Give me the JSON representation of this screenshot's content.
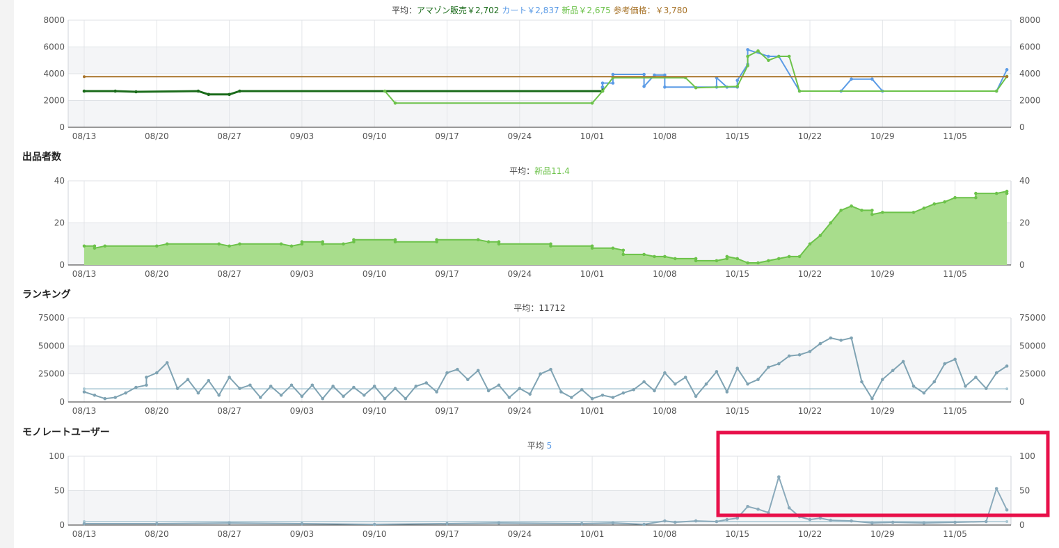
{
  "colors": {
    "amazon": "#1a6b1a",
    "cart": "#5b9be6",
    "new": "#6cc24a",
    "new_fill": "#a8dd8c",
    "reference": "#a8742a",
    "rank": "#7fa3b3",
    "monorate": "#8aaabb",
    "highlight": "#e8104a"
  },
  "date_labels": [
    "08/13",
    "08/20",
    "08/27",
    "09/03",
    "09/10",
    "09/17",
    "09/24",
    "10/01",
    "10/08",
    "10/15",
    "10/22",
    "10/29",
    "11/05"
  ],
  "charts": {
    "price": {
      "legend": {
        "avg_label": "平均：",
        "amazon": "アマゾン販売￥2,702",
        "cart": "カート￥2,837",
        "new": "新品￥2,675",
        "reference": "参考価格：￥3,780"
      },
      "yticks": [
        "8000",
        "6000",
        "4000",
        "2000",
        "0"
      ]
    },
    "sellers": {
      "title": "出品者数",
      "legend": {
        "avg_label": "平均：",
        "new": "新品11.4"
      },
      "yticks": [
        "40",
        "20",
        "0"
      ]
    },
    "ranking": {
      "title": "ランキング",
      "legend": {
        "avg_label": "平均：11712"
      },
      "yticks": [
        "75000",
        "50000",
        "25000",
        "0"
      ]
    },
    "monorate": {
      "title": "モノレートユーザー",
      "legend": {
        "avg_label": "平均",
        "avg_value": "5"
      },
      "yticks": [
        "100",
        "50",
        "0"
      ]
    }
  },
  "chart_data": [
    {
      "type": "line",
      "ylim": [
        0,
        8000
      ],
      "series": [
        {
          "name": "アマゾン販売",
          "points": [
            [
              "08/13",
              2700
            ],
            [
              "08/16",
              2700
            ],
            [
              "08/18",
              2650
            ],
            [
              "08/24",
              2700
            ],
            [
              "08/25",
              2450
            ],
            [
              "08/27",
              2450
            ],
            [
              "08/28",
              2700
            ],
            [
              "10/02",
              2700
            ],
            [
              "10/02",
              3000
            ]
          ]
        },
        {
          "name": "カート",
          "points": [
            [
              "10/02",
              3000
            ],
            [
              "10/02",
              3300
            ],
            [
              "10/03",
              3300
            ],
            [
              "10/03",
              3950
            ],
            [
              "10/06",
              3950
            ],
            [
              "10/06",
              3050
            ],
            [
              "10/07",
              3900
            ],
            [
              "10/08",
              3900
            ],
            [
              "10/08",
              3000
            ],
            [
              "10/13",
              3000
            ],
            [
              "10/13",
              3700
            ],
            [
              "10/14",
              3000
            ],
            [
              "10/15",
              3000
            ],
            [
              "10/15",
              3500
            ],
            [
              "10/16",
              4700
            ],
            [
              "10/16",
              5800
            ],
            [
              "10/18",
              5300
            ],
            [
              "10/19",
              5300
            ],
            [
              "10/21",
              2700
            ],
            [
              "10/25",
              2700
            ],
            [
              "10/26",
              3600
            ],
            [
              "10/28",
              3600
            ],
            [
              "10/29",
              2700
            ],
            [
              "11/09",
              2700
            ],
            [
              "11/10",
              4300
            ]
          ]
        },
        {
          "name": "新品",
          "points": [
            [
              "09/11",
              2700
            ],
            [
              "09/12",
              1800
            ],
            [
              "10/01",
              1800
            ],
            [
              "10/02",
              2700
            ],
            [
              "10/03",
              3700
            ],
            [
              "10/10",
              3700
            ],
            [
              "10/11",
              2950
            ],
            [
              "10/15",
              3050
            ],
            [
              "10/16",
              4600
            ],
            [
              "10/16",
              5300
            ],
            [
              "10/17",
              5700
            ],
            [
              "10/18",
              5000
            ],
            [
              "10/19",
              5300
            ],
            [
              "10/20",
              5300
            ],
            [
              "10/21",
              2700
            ],
            [
              "11/09",
              2700
            ],
            [
              "11/10",
              3800
            ]
          ]
        },
        {
          "name": "参考価格",
          "points": [
            [
              "08/13",
              3780
            ],
            [
              "11/10",
              3780
            ]
          ]
        }
      ]
    },
    {
      "type": "area",
      "ylim": [
        0,
        40
      ],
      "series": [
        {
          "name": "新品",
          "points": [
            [
              "08/13",
              9
            ],
            [
              "08/14",
              9
            ],
            [
              "08/14",
              8
            ],
            [
              "08/15",
              9
            ],
            [
              "08/20",
              9
            ],
            [
              "08/21",
              10
            ],
            [
              "08/26",
              10
            ],
            [
              "08/27",
              9
            ],
            [
              "08/28",
              10
            ],
            [
              "09/01",
              10
            ],
            [
              "09/02",
              9
            ],
            [
              "09/03",
              10
            ],
            [
              "09/03",
              11
            ],
            [
              "09/05",
              11
            ],
            [
              "09/05",
              10
            ],
            [
              "09/07",
              10
            ],
            [
              "09/08",
              11
            ],
            [
              "09/08",
              12
            ],
            [
              "09/12",
              12
            ],
            [
              "09/12",
              11
            ],
            [
              "09/16",
              11
            ],
            [
              "09/16",
              12
            ],
            [
              "09/20",
              12
            ],
            [
              "09/21",
              11
            ],
            [
              "09/22",
              11
            ],
            [
              "09/22",
              10
            ],
            [
              "09/27",
              10
            ],
            [
              "09/27",
              9
            ],
            [
              "10/01",
              9
            ],
            [
              "10/01",
              8
            ],
            [
              "10/03",
              8
            ],
            [
              "10/04",
              7
            ],
            [
              "10/04",
              5
            ],
            [
              "10/06",
              5
            ],
            [
              "10/07",
              4
            ],
            [
              "10/08",
              4
            ],
            [
              "10/09",
              3
            ],
            [
              "10/11",
              3
            ],
            [
              "10/11",
              2
            ],
            [
              "10/13",
              2
            ],
            [
              "10/14",
              3
            ],
            [
              "10/14",
              4
            ],
            [
              "10/15",
              3
            ],
            [
              "10/16",
              1
            ],
            [
              "10/17",
              1
            ],
            [
              "10/18",
              2
            ],
            [
              "10/19",
              3
            ],
            [
              "10/20",
              4
            ],
            [
              "10/21",
              4
            ],
            [
              "10/22",
              10
            ],
            [
              "10/23",
              14
            ],
            [
              "10/24",
              20
            ],
            [
              "10/25",
              26
            ],
            [
              "10/26",
              28
            ],
            [
              "10/27",
              26
            ],
            [
              "10/28",
              26
            ],
            [
              "10/28",
              24
            ],
            [
              "10/29",
              25
            ],
            [
              "11/01",
              25
            ],
            [
              "11/02",
              27
            ],
            [
              "11/03",
              29
            ],
            [
              "11/04",
              30
            ],
            [
              "11/05",
              32
            ],
            [
              "11/07",
              32
            ],
            [
              "11/07",
              34
            ],
            [
              "11/09",
              34
            ],
            [
              "11/10",
              35
            ],
            [
              "11/10",
              34
            ]
          ]
        }
      ]
    },
    {
      "type": "line",
      "ylim": [
        0,
        75000
      ],
      "series": [
        {
          "name": "ランキング",
          "average": 11712,
          "points": [
            [
              "08/13",
              9000
            ],
            [
              "08/14",
              6000
            ],
            [
              "08/15",
              3000
            ],
            [
              "08/16",
              4000
            ],
            [
              "08/17",
              8000
            ],
            [
              "08/18",
              13000
            ],
            [
              "08/19",
              15000
            ],
            [
              "08/19",
              22000
            ],
            [
              "08/20",
              26000
            ],
            [
              "08/21",
              35000
            ],
            [
              "08/22",
              12000
            ],
            [
              "08/23",
              20000
            ],
            [
              "08/24",
              8000
            ],
            [
              "08/25",
              19000
            ],
            [
              "08/26",
              6000
            ],
            [
              "08/27",
              22000
            ],
            [
              "08/28",
              12000
            ],
            [
              "08/29",
              15000
            ],
            [
              "08/30",
              4000
            ],
            [
              "08/31",
              14000
            ],
            [
              "09/01",
              6000
            ],
            [
              "09/02",
              15000
            ],
            [
              "09/03",
              5000
            ],
            [
              "09/04",
              15000
            ],
            [
              "09/05",
              3000
            ],
            [
              "09/06",
              14000
            ],
            [
              "09/07",
              5000
            ],
            [
              "09/08",
              13000
            ],
            [
              "09/09",
              6000
            ],
            [
              "09/10",
              14000
            ],
            [
              "09/11",
              3000
            ],
            [
              "09/12",
              12000
            ],
            [
              "09/13",
              3000
            ],
            [
              "09/14",
              14000
            ],
            [
              "09/15",
              17000
            ],
            [
              "09/16",
              9000
            ],
            [
              "09/17",
              26000
            ],
            [
              "09/18",
              29000
            ],
            [
              "09/19",
              20000
            ],
            [
              "09/20",
              28000
            ],
            [
              "09/21",
              10000
            ],
            [
              "09/22",
              15000
            ],
            [
              "09/23",
              4000
            ],
            [
              "09/24",
              12000
            ],
            [
              "09/25",
              7000
            ],
            [
              "09/26",
              25000
            ],
            [
              "09/27",
              29000
            ],
            [
              "09/28",
              9000
            ],
            [
              "09/29",
              4000
            ],
            [
              "09/30",
              11000
            ],
            [
              "10/01",
              3000
            ],
            [
              "10/02",
              6000
            ],
            [
              "10/03",
              4000
            ],
            [
              "10/04",
              8000
            ],
            [
              "10/05",
              11000
            ],
            [
              "10/06",
              18000
            ],
            [
              "10/07",
              10000
            ],
            [
              "10/08",
              26000
            ],
            [
              "10/09",
              16000
            ],
            [
              "10/10",
              22000
            ],
            [
              "10/11",
              5000
            ],
            [
              "10/12",
              16000
            ],
            [
              "10/13",
              27000
            ],
            [
              "10/14",
              9000
            ],
            [
              "10/15",
              30000
            ],
            [
              "10/16",
              16000
            ],
            [
              "10/17",
              20000
            ],
            [
              "10/18",
              31000
            ],
            [
              "10/19",
              34000
            ],
            [
              "10/20",
              41000
            ],
            [
              "10/21",
              42000
            ],
            [
              "10/22",
              45000
            ],
            [
              "10/23",
              52000
            ],
            [
              "10/24",
              57000
            ],
            [
              "10/25",
              55000
            ],
            [
              "10/26",
              57000
            ],
            [
              "10/27",
              18000
            ],
            [
              "10/28",
              3000
            ],
            [
              "10/29",
              20000
            ],
            [
              "10/30",
              28000
            ],
            [
              "10/31",
              36000
            ],
            [
              "11/01",
              14000
            ],
            [
              "11/02",
              8000
            ],
            [
              "11/03",
              18000
            ],
            [
              "11/04",
              34000
            ],
            [
              "11/05",
              38000
            ],
            [
              "11/06",
              14000
            ],
            [
              "11/07",
              22000
            ],
            [
              "11/08",
              12000
            ],
            [
              "11/09",
              26000
            ],
            [
              "11/10",
              32000
            ]
          ]
        }
      ]
    },
    {
      "type": "line",
      "ylim": [
        0,
        100
      ],
      "series": [
        {
          "name": "モノレートユーザー",
          "average": 5,
          "points": [
            [
              "08/13",
              2
            ],
            [
              "08/20",
              2
            ],
            [
              "08/27",
              3
            ],
            [
              "09/03",
              2
            ],
            [
              "09/10",
              1
            ],
            [
              "09/17",
              2
            ],
            [
              "09/22",
              3
            ],
            [
              "09/30",
              2
            ],
            [
              "10/03",
              3
            ],
            [
              "10/06",
              1
            ],
            [
              "10/08",
              6
            ],
            [
              "10/09",
              4
            ],
            [
              "10/11",
              6
            ],
            [
              "10/13",
              5
            ],
            [
              "10/14",
              8
            ],
            [
              "10/15",
              10
            ],
            [
              "10/16",
              27
            ],
            [
              "10/17",
              23
            ],
            [
              "10/18",
              18
            ],
            [
              "10/19",
              70
            ],
            [
              "10/20",
              25
            ],
            [
              "10/21",
              12
            ],
            [
              "10/22",
              8
            ],
            [
              "10/23",
              10
            ],
            [
              "10/24",
              7
            ],
            [
              "10/26",
              6
            ],
            [
              "10/28",
              3
            ],
            [
              "10/30",
              4
            ],
            [
              "11/02",
              3
            ],
            [
              "11/05",
              4
            ],
            [
              "11/08",
              5
            ],
            [
              "11/09",
              53
            ],
            [
              "11/10",
              22
            ]
          ]
        }
      ]
    }
  ]
}
